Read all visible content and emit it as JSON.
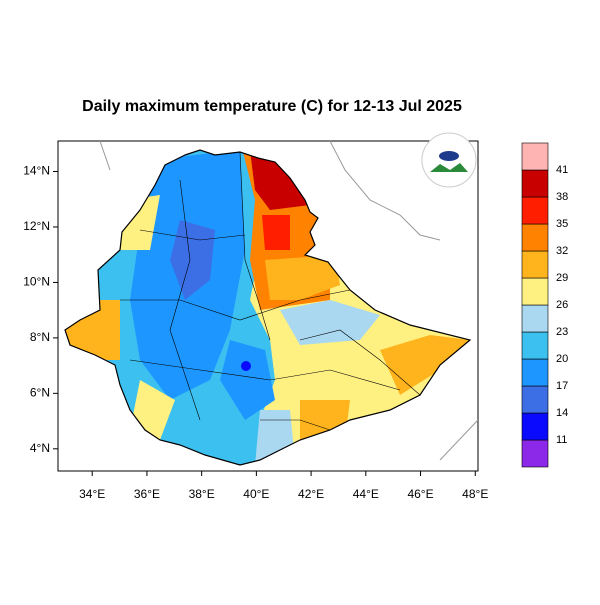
{
  "chart_data": {
    "type": "map",
    "title": "Daily maximum temperature (C) for 12-13 Jul 2025",
    "xlim": [
      32.75,
      48.1
    ],
    "ylim": [
      3.2,
      15.1
    ],
    "xticks": [
      {
        "value": 34,
        "label": "34°E"
      },
      {
        "value": 36,
        "label": "36°E"
      },
      {
        "value": 38,
        "label": "38°E"
      },
      {
        "value": 40,
        "label": "40°E"
      },
      {
        "value": 42,
        "label": "42°E"
      },
      {
        "value": 44,
        "label": "44°E"
      },
      {
        "value": 46,
        "label": "46°E"
      },
      {
        "value": 48,
        "label": "48°E"
      }
    ],
    "yticks": [
      {
        "value": 4,
        "label": "4°N"
      },
      {
        "value": 6,
        "label": "6°N"
      },
      {
        "value": 8,
        "label": "8°N"
      },
      {
        "value": 10,
        "label": "10°N"
      },
      {
        "value": 12,
        "label": "12°N"
      },
      {
        "value": 14,
        "label": "14°N"
      }
    ],
    "colorbar": {
      "levels": [
        11,
        14,
        17,
        20,
        23,
        26,
        29,
        32,
        35,
        38,
        41
      ],
      "colors": [
        "#8c28e8",
        "#0a0aff",
        "#3c6ee6",
        "#1e96ff",
        "#3cc0f0",
        "#aad8f0",
        "#fff082",
        "#ffb41e",
        "#ff8200",
        "#ff1e00",
        "#c80000",
        "#ffb4b4"
      ]
    }
  }
}
